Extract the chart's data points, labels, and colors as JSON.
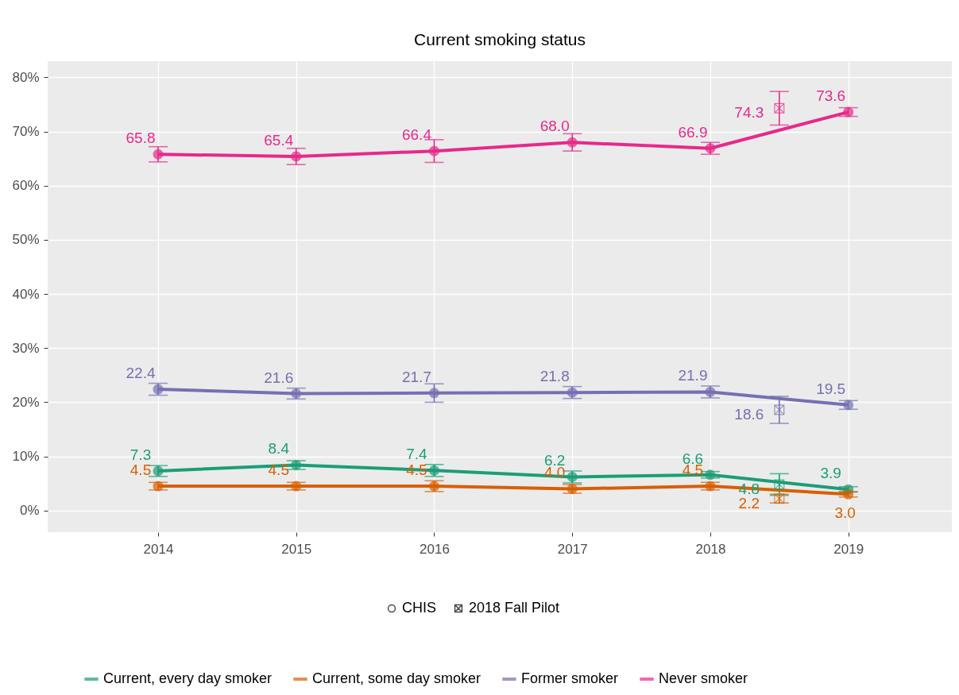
{
  "chart_data": {
    "type": "line",
    "title": "Current smoking status",
    "xlim": [
      2013.2,
      2019.75
    ],
    "xticks": [
      2014,
      2015,
      2016,
      2017,
      2018,
      2019
    ],
    "ylim": [
      -4,
      83
    ],
    "yticks": [
      {
        "value": 0,
        "label": "0%"
      },
      {
        "value": 10,
        "label": "10%"
      },
      {
        "value": 20,
        "label": "20%"
      },
      {
        "value": 30,
        "label": "30%"
      },
      {
        "value": 40,
        "label": "40%"
      },
      {
        "value": 50,
        "label": "50%"
      },
      {
        "value": 60,
        "label": "60%"
      },
      {
        "value": 70,
        "label": "70%"
      },
      {
        "value": 80,
        "label": "80%"
      }
    ],
    "grid": true,
    "legend": "bottom",
    "annotations": [
      "CHIS",
      "2018 Fall Pilot"
    ],
    "series": [
      {
        "name": "Current, every day smoker",
        "color": "#1b9e77",
        "type": "line",
        "marker": "circle",
        "x": [
          2014,
          2015,
          2016,
          2017,
          2018,
          2019
        ],
        "values": [
          7.3,
          8.4,
          7.4,
          6.2,
          6.6,
          3.9
        ],
        "value_labels": [
          "7.3",
          "8.4",
          "7.4",
          "6.2",
          "6.6",
          "3.9"
        ],
        "errors": [
          1.0,
          0.8,
          1.1,
          1.1,
          0.6,
          0.5
        ]
      },
      {
        "name": "Current, some day smoker",
        "color": "#d95f02",
        "type": "line",
        "marker": "circle",
        "x": [
          2014,
          2015,
          2016,
          2017,
          2018,
          2019
        ],
        "values": [
          4.5,
          4.5,
          4.5,
          4.0,
          4.5,
          3.0
        ],
        "value_labels": [
          "4.5",
          "4.5",
          "4.5",
          "4.0",
          "4.5",
          "3.0"
        ],
        "errors": [
          0.7,
          0.7,
          1.0,
          0.8,
          0.7,
          0.5
        ]
      },
      {
        "name": "Former smoker",
        "color": "#7570b3",
        "type": "line",
        "marker": "circle",
        "x": [
          2014,
          2015,
          2016,
          2017,
          2018,
          2019
        ],
        "values": [
          22.4,
          21.6,
          21.7,
          21.8,
          21.9,
          19.5
        ],
        "value_labels": [
          "22.4",
          "21.6",
          "21.7",
          "21.8",
          "21.9",
          "19.5"
        ],
        "errors": [
          1.1,
          1.0,
          1.7,
          1.1,
          1.1,
          0.8
        ]
      },
      {
        "name": "Never smoker",
        "color": "#e7298a",
        "type": "line",
        "marker": "circle",
        "x": [
          2014,
          2015,
          2016,
          2017,
          2018,
          2019
        ],
        "values": [
          65.8,
          65.4,
          66.4,
          68.0,
          66.9,
          73.6
        ],
        "value_labels": [
          "65.8",
          "65.4",
          "66.4",
          "68.0",
          "66.9",
          "73.6"
        ],
        "errors": [
          1.4,
          1.5,
          2.1,
          1.6,
          1.1,
          0.8
        ]
      },
      {
        "color": "#1b9e77",
        "type": "scatter",
        "marker": "cross",
        "x": [
          2018.5
        ],
        "values": [
          4.8
        ],
        "value_labels": [
          "4.8"
        ],
        "errors": [
          2.0
        ]
      },
      {
        "color": "#d95f02",
        "type": "scatter",
        "marker": "cross",
        "x": [
          2018.5
        ],
        "values": [
          2.2
        ],
        "value_labels": [
          "2.2"
        ],
        "errors": [
          0.8
        ]
      },
      {
        "color": "#7570b3",
        "type": "scatter",
        "marker": "cross",
        "x": [
          2018.5
        ],
        "values": [
          18.6
        ],
        "value_labels": [
          "18.6"
        ],
        "errors": [
          2.5
        ]
      },
      {
        "color": "#e7298a",
        "type": "scatter",
        "marker": "cross",
        "x": [
          2018.5
        ],
        "values": [
          74.3
        ],
        "value_labels": [
          "74.3"
        ],
        "errors": [
          3.1
        ]
      }
    ]
  }
}
